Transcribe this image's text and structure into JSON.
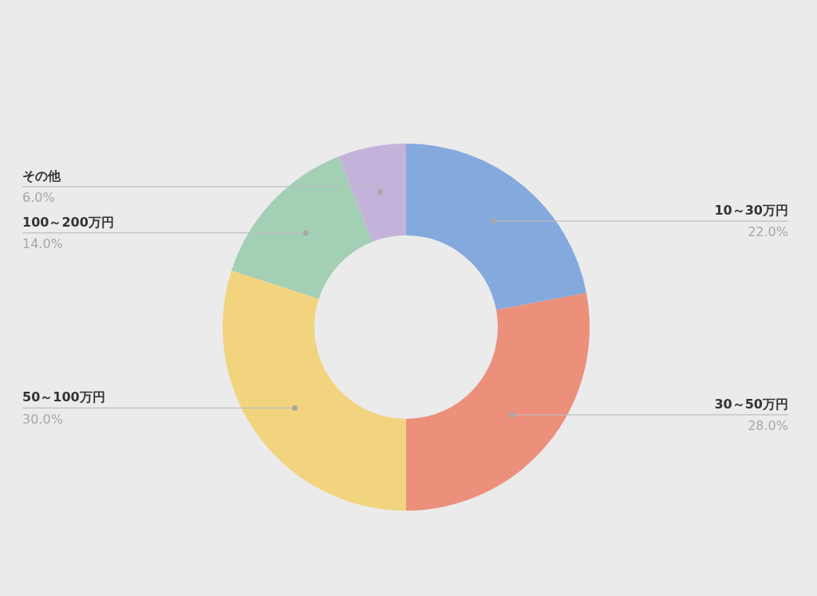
{
  "chart_data": {
    "type": "donut",
    "categories": [
      "10～30万円",
      "30～50万円",
      "50～100万円",
      "100～200万円",
      "その他"
    ],
    "values": [
      22,
      28,
      30,
      14,
      6
    ],
    "value_labels": [
      "22.0%",
      "28.0%",
      "30.0%",
      "14.0%",
      "6.0%"
    ],
    "colors": [
      "#83a9dd",
      "#ec8f7b",
      "#f2d47f",
      "#a3cfb5",
      "#c3b3da"
    ],
    "legend": false
  }
}
